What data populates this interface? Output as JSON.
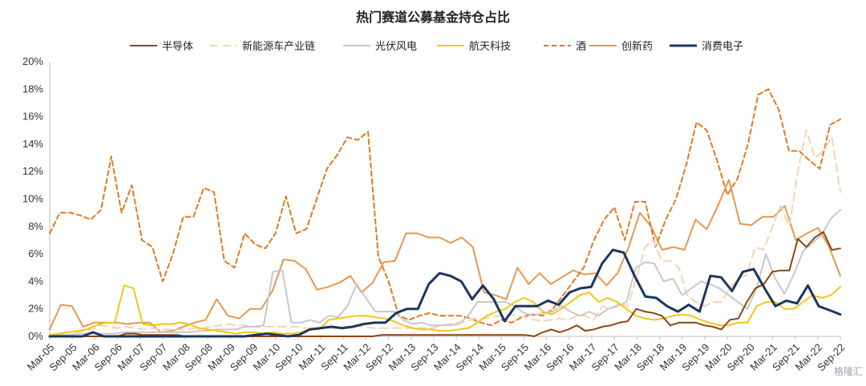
{
  "chart_data": {
    "type": "line",
    "title": "热门赛道公募基金持仓占比",
    "xlabel": "",
    "ylabel": "",
    "ylim": [
      0,
      20
    ],
    "yticks": [
      "0%",
      "2%",
      "4%",
      "6%",
      "8%",
      "10%",
      "12%",
      "14%",
      "16%",
      "18%",
      "20%"
    ],
    "x_tick_labels": [
      "Mar-05",
      "Sep-05",
      "Mar-06",
      "Sep-06",
      "Mar-07",
      "Sep-07",
      "Mar-08",
      "Sep-08",
      "Mar-09",
      "Sep-09",
      "Mar-10",
      "Sep-10",
      "Mar-11",
      "Sep-11",
      "Mar-12",
      "Sep-12",
      "Mar-13",
      "Sep-13",
      "Mar-14",
      "Sep-14",
      "Mar-15",
      "Sep-15",
      "Mar-16",
      "Sep-16",
      "Mar-17",
      "Sep-17",
      "Mar-18",
      "Sep-18",
      "Mar-19",
      "Sep-19",
      "Mar-20",
      "Sep-20",
      "Mar-21",
      "Sep-21",
      "Mar-22",
      "Sep-22"
    ],
    "grid": false,
    "legend_position": "top",
    "series": [
      {
        "name": "半导体",
        "color": "#8B4513",
        "dash": "solid",
        "width": 2,
        "values": [
          0,
          0,
          0,
          0,
          0,
          0,
          0,
          0,
          0,
          0.2,
          0.2,
          0.1,
          0.1,
          0.1,
          0.1,
          0.1,
          0,
          0,
          0,
          0,
          0,
          0,
          0,
          0,
          0,
          0,
          0,
          0,
          0,
          0,
          0,
          0,
          0,
          0,
          0,
          0,
          0,
          0,
          0,
          0.1,
          0.1,
          0.1,
          0.1,
          0.1,
          0.1,
          0.1,
          0.1,
          0.1,
          0.1,
          0.1,
          0.1,
          0.1,
          0.1,
          0.1,
          0.1,
          0.1,
          0.1,
          0,
          0.3,
          0.5,
          0.3,
          0.5,
          0.8,
          0.4,
          0.5,
          0.7,
          0.8,
          1.0,
          1.1,
          2.0,
          1.8,
          1.7,
          1.5,
          0.8,
          1.0,
          1.0,
          1.0,
          0.8,
          0.7,
          0.5,
          1.2,
          1.3,
          2.5,
          3.5,
          3.8,
          4.7,
          4.8,
          4.8,
          7.1,
          6.5,
          7.2,
          7.6,
          6.3,
          6.4
        ]
      },
      {
        "name": "新能源车产业链",
        "color": "#F6D3B4",
        "dash": "10,6",
        "width": 2,
        "values": [
          0.1,
          0.2,
          0.3,
          0.3,
          0.4,
          0.5,
          0.8,
          0.7,
          0.6,
          0.7,
          0.6,
          0.5,
          0.6,
          0.5,
          0.5,
          0.5,
          0.5,
          0.6,
          0.6,
          0.7,
          0.8,
          0.9,
          0.8,
          0.8,
          0.7,
          0.7,
          0.7,
          0.7,
          0.7,
          0.7,
          0.6,
          0.6,
          0.6,
          0.6,
          0.6,
          0.7,
          0.8,
          0.7,
          0.6,
          0.6,
          0.6,
          0.6,
          0.6,
          0.6,
          0.6,
          0.6,
          0.8,
          0.9,
          1.0,
          1.1,
          1.3,
          1.3,
          1.4,
          1.5,
          1.6,
          1.5,
          1.4,
          1.2,
          1.1,
          1.2,
          1.3,
          1.2,
          1.5,
          1.5,
          1.2,
          2.2,
          2.0,
          2.4,
          2.2,
          4.2,
          6.5,
          7.0,
          5.5,
          5.5,
          5.0,
          3.0,
          2.5,
          2.2,
          2.5,
          2.5,
          3.5,
          4.2,
          4.5,
          6.5,
          6.3,
          8.0,
          9.5,
          8.0,
          12.0,
          15.0,
          13.0,
          13.5,
          14.5,
          10.5
        ]
      },
      {
        "name": "光伏风电",
        "color": "#C8C8C8",
        "dash": "solid",
        "width": 2,
        "values": [
          0.1,
          0.1,
          0.1,
          0.2,
          0.2,
          0.2,
          0.2,
          0.2,
          0.3,
          0.3,
          0.3,
          0.3,
          0.3,
          0.3,
          0.3,
          0.3,
          0.4,
          0.4,
          0.5,
          0.5,
          0.5,
          0.7,
          0.7,
          0.8,
          4.7,
          4.8,
          1.0,
          1.0,
          1.2,
          1.0,
          1.5,
          1.4,
          2.2,
          3.8,
          2.8,
          1.8,
          1.8,
          1.8,
          1.2,
          0.9,
          1.0,
          0.8,
          0.8,
          0.8,
          0.9,
          1.5,
          2.5,
          2.5,
          2.5,
          2.5,
          2.2,
          1.7,
          1.5,
          1.7,
          1.8,
          2.2,
          1.8,
          1.5,
          1.8,
          1.5,
          2.0,
          2.2,
          2.5,
          5.0,
          5.4,
          5.3,
          4.0,
          4.2,
          3.0,
          3.5,
          4.0,
          3.8,
          3.5,
          3.0,
          2.5,
          2.0,
          3.5,
          6.0,
          4.2,
          3.1,
          4.5,
          6.2,
          6.8,
          7.4,
          8.6,
          9.2
        ]
      },
      {
        "name": "航天科技",
        "color": "#F5C518",
        "dash": "solid",
        "width": 2,
        "values": [
          0.1,
          0.2,
          0.3,
          0.4,
          0.5,
          0.8,
          1.0,
          1.0,
          3.7,
          3.5,
          0.9,
          0.8,
          0.9,
          0.9,
          1.0,
          0.9,
          0.6,
          0.5,
          0.4,
          0.3,
          0.2,
          0.3,
          0.3,
          0.2,
          0.3,
          0.2,
          0.2,
          0.3,
          0.5,
          0.5,
          1.2,
          1.3,
          1.4,
          1.5,
          1.5,
          1.4,
          1.3,
          1.1,
          0.8,
          0.6,
          0.5,
          0.5,
          0.4,
          0.4,
          0.5,
          0.6,
          1.0,
          1.5,
          1.8,
          2.0,
          2.5,
          2.8,
          2.5,
          1.8,
          1.6,
          2.0,
          2.5,
          3.0,
          3.2,
          2.5,
          2.8,
          2.5,
          2.0,
          1.5,
          1.3,
          1.2,
          1.3,
          1.5,
          1.6,
          1.5,
          1.2,
          1.0,
          0.8,
          0.8,
          1.0,
          1.0,
          2.2,
          2.5,
          2.5,
          2.0,
          2.0,
          2.5,
          3.0,
          2.8,
          3.0,
          3.6
        ]
      },
      {
        "name": "酒",
        "color": "#E07B1F",
        "dash": "6,4",
        "width": 2,
        "values": [
          7.5,
          9.0,
          9.0,
          8.8,
          8.5,
          9.2,
          13.1,
          9.0,
          11.0,
          7.0,
          6.5,
          4.0,
          6.0,
          8.7,
          8.7,
          10.8,
          10.5,
          5.5,
          5.0,
          7.5,
          6.7,
          6.4,
          7.5,
          10.2,
          7.5,
          7.8,
          10.0,
          12.2,
          13.2,
          14.5,
          14.3,
          14.9,
          5.8,
          4.0,
          1.5,
          1.2,
          1.5,
          1.7,
          1.5,
          1.5,
          1.5,
          1.3,
          1.0,
          0.8,
          1.2,
          1.0,
          1.4,
          1.6,
          1.5,
          2.0,
          3.0,
          4.0,
          5.0,
          7.0,
          8.5,
          9.4,
          7.0,
          9.8,
          9.8,
          6.5,
          8.5,
          10.0,
          12.5,
          15.6,
          15.0,
          12.8,
          10.3,
          11.5,
          14.0,
          17.6,
          18.0,
          16.5,
          13.5,
          13.5,
          12.8,
          12.2,
          15.4,
          15.8
        ]
      },
      {
        "name": "创新药",
        "color": "#E59850",
        "dash": "solid",
        "width": 2,
        "values": [
          0.5,
          2.3,
          2.2,
          0.7,
          1.0,
          1.0,
          1.0,
          0.9,
          1.0,
          1.0,
          0.3,
          0.4,
          0.7,
          1.0,
          1.2,
          2.7,
          1.5,
          1.3,
          2.0,
          2.0,
          3.3,
          5.6,
          5.5,
          4.9,
          3.4,
          3.6,
          3.9,
          4.4,
          3.2,
          3.9,
          5.4,
          5.5,
          7.5,
          7.5,
          7.2,
          7.2,
          6.8,
          7.2,
          6.5,
          3.2,
          3.0,
          2.7,
          5.0,
          3.8,
          4.6,
          3.8,
          4.3,
          4.8,
          4.5,
          4.6,
          3.7,
          4.6,
          6.5,
          9.0,
          8.0,
          6.3,
          6.5,
          6.3,
          8.5,
          7.8,
          9.5,
          11.4,
          8.2,
          8.1,
          8.7,
          8.7,
          9.5,
          7.0,
          7.5,
          7.9,
          6.5,
          4.4
        ]
      },
      {
        "name": "消费电子",
        "color": "#1B365D",
        "dash": "solid",
        "width": 3,
        "values": [
          0,
          0,
          0,
          0,
          0.3,
          0,
          0,
          0,
          0,
          0,
          0,
          0,
          0,
          0,
          0,
          0,
          0,
          0,
          0,
          0.1,
          0.2,
          0.1,
          0,
          0.1,
          0.5,
          0.6,
          0.7,
          0.6,
          0.7,
          0.9,
          1.0,
          1.0,
          1.7,
          2.0,
          2.0,
          3.8,
          4.6,
          4.4,
          4.0,
          2.7,
          3.7,
          2.7,
          1.1,
          2.2,
          2.2,
          2.2,
          2.6,
          2.3,
          3.2,
          3.5,
          3.6,
          5.3,
          6.3,
          6.1,
          4.4,
          2.9,
          2.8,
          2.2,
          1.8,
          2.3,
          1.8,
          4.4,
          4.3,
          3.3,
          4.7,
          4.9,
          3.5,
          2.2,
          2.6,
          2.4,
          3.7,
          2.2,
          1.9,
          1.6
        ]
      }
    ]
  },
  "watermark": "格隆汇"
}
